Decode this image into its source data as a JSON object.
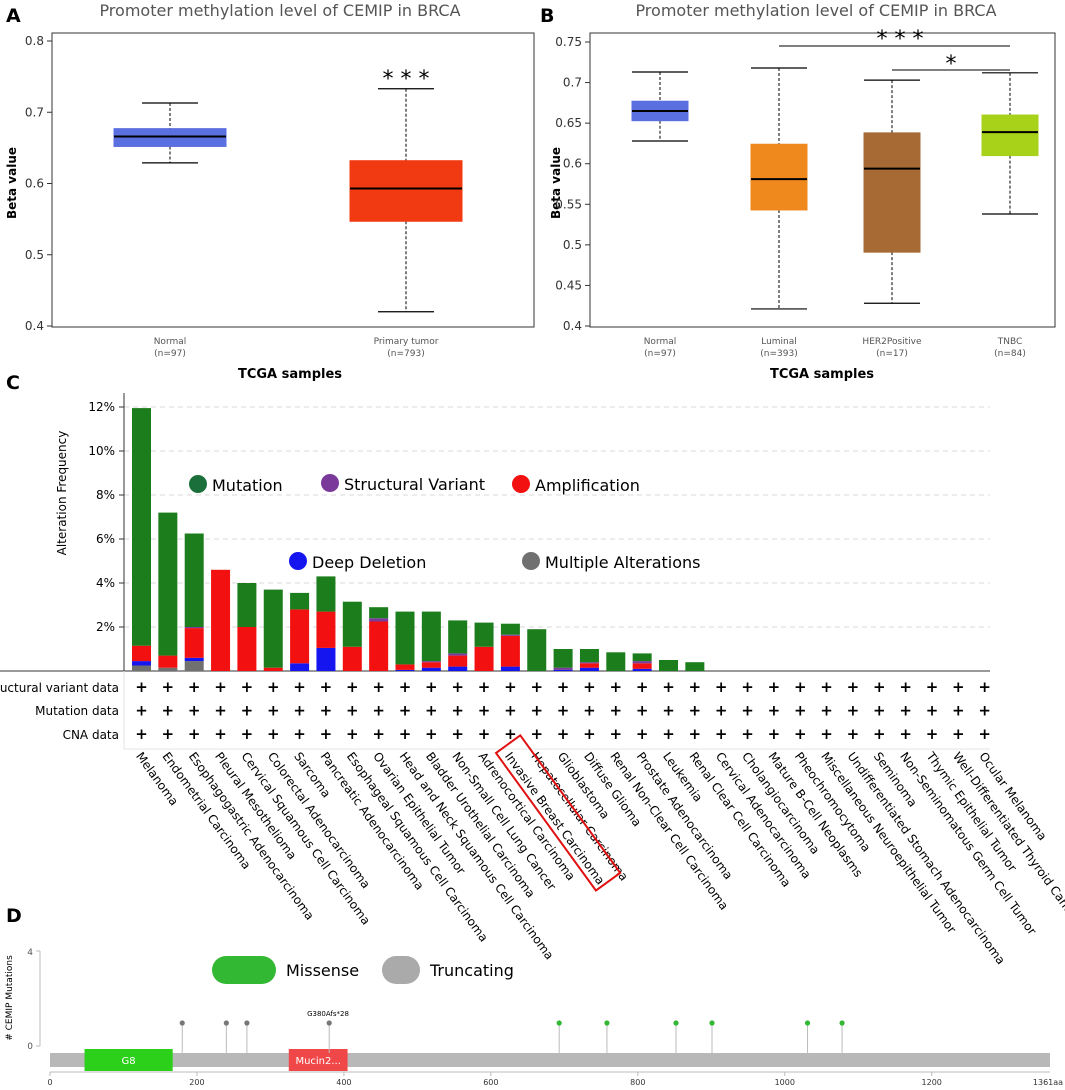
{
  "colors": {
    "normal": "#5a6fe0",
    "tumor": "#f23a12",
    "luminal": "#f0891d",
    "her2": "#a86a34",
    "tnbc": "#a8d11a",
    "mutation": "#1b7d1b",
    "structural": "#7a3a9a",
    "amplification": "#f21010",
    "deep_deletion": "#1515f0",
    "multiple": "#707070",
    "missense": "#33b833",
    "truncating": "#aaaaaa",
    "domain_g8": "#2ccf1a",
    "domain_mucin": "#f04848",
    "highlight": "#e01010"
  },
  "panel_a": {
    "letter": "A",
    "chart_data": {
      "type": "boxplot",
      "title": "Promoter methylation level of CEMIP in BRCA",
      "ylabel": "Beta value",
      "xlabel": "TCGA samples",
      "ylim": [
        0.4,
        0.8
      ],
      "yticks": [
        "0.4",
        "0.5",
        "0.6",
        "0.7",
        "0.8"
      ],
      "groups": [
        {
          "name": "Normal",
          "n": "(n=97)",
          "min": 0.629,
          "q1": 0.652,
          "median": 0.666,
          "q3": 0.677,
          "max": 0.713
        },
        {
          "name": "Primary tumor",
          "n": "(n=793)",
          "min": 0.42,
          "q1": 0.547,
          "median": 0.593,
          "q3": 0.632,
          "max": 0.733
        }
      ],
      "significance": "* * *"
    }
  },
  "panel_b": {
    "letter": "B",
    "chart_data": {
      "type": "boxplot",
      "title": "Promoter methylation level of CEMIP in BRCA",
      "ylabel": "Beta value",
      "xlabel": "TCGA samples",
      "ylim": [
        0.4,
        0.75
      ],
      "yticks": [
        "0.4",
        "0.45",
        "0.5",
        "0.55",
        "0.6",
        "0.65",
        "0.7",
        "0.75"
      ],
      "groups": [
        {
          "name": "Normal",
          "n": "(n=97)",
          "min": 0.628,
          "q1": 0.653,
          "median": 0.665,
          "q3": 0.677,
          "max": 0.713
        },
        {
          "name": "Luminal",
          "n": "(n=393)",
          "min": 0.421,
          "q1": 0.543,
          "median": 0.581,
          "q3": 0.624,
          "max": 0.718
        },
        {
          "name": "HER2Positive",
          "n": "(n=17)",
          "min": 0.428,
          "q1": 0.491,
          "median": 0.594,
          "q3": 0.638,
          "max": 0.703
        },
        {
          "name": "TNBC",
          "n": "(n=84)",
          "min": 0.538,
          "q1": 0.61,
          "median": 0.639,
          "q3": 0.66,
          "max": 0.712
        }
      ],
      "significance": [
        "* * *",
        "*"
      ]
    }
  },
  "panel_c": {
    "letter": "C",
    "chart_data": {
      "type": "stacked-bar",
      "ylabel": "Alteration Frequency",
      "ylim": [
        0,
        12
      ],
      "yticks": [
        "2%",
        "4%",
        "6%",
        "8%",
        "10%",
        "12%"
      ],
      "legend": [
        "Mutation",
        "Structural Variant",
        "Amplification",
        "Deep Deletion",
        "Multiple Alterations"
      ],
      "row_labels": [
        "Structural variant data",
        "Mutation data",
        "CNA data"
      ],
      "cell_mark": "+",
      "highlighted": "Invasive Breast Carcinoma",
      "categories": [
        "Melanoma",
        "Endometrial Carcinoma",
        "Esophagogastric Adenocarcinoma",
        "Pleural Mesothelioma",
        "Cervical Squamous Cell Carcinoma",
        "Colorectal Adenocarcinoma",
        "Sarcoma",
        "Pancreatic Adenocarcinoma",
        "Esophageal Squamous Cell Carcinoma",
        "Ovarian Epithelial Tumor",
        "Head and Neck Squamous Cell Carcinoma",
        "Bladder Urothelial Carcinoma",
        "Non-Small Cell Lung Cancer",
        "Adrenocortical Carcinoma",
        "Invasive Breast Carcinoma",
        "Hepatocellular Carcinoma",
        "Glioblastoma",
        "Diffuse Glioma",
        "Renal Non-Clear Cell Carcinoma",
        "Prostate Adenocarcinoma",
        "Leukemia",
        "Renal Clear Cell Carcinoma",
        "Cervical Adenocarcinoma",
        "Cholangiocarcinoma",
        "Mature B-Cell Neoplasms",
        "Pheochromocytoma",
        "Miscellaneous Neuroepithelial Tumor",
        "Undifferentiated Stomach Adenocarcinoma",
        "Seminoma",
        "Non-Seminomatous Germ Cell Tumor",
        "Thymic Epithelial Tumor",
        "Well-Differentiated Thyroid Cancer",
        "Ocular Melanoma"
      ],
      "series": [
        {
          "name": "Multiple Alterations",
          "values": [
            0.25,
            0.15,
            0.45,
            0,
            0,
            0,
            0,
            0,
            0,
            0,
            0,
            0,
            0,
            0,
            0,
            0,
            0,
            0,
            0,
            0,
            0,
            0,
            0,
            0,
            0,
            0,
            0,
            0,
            0,
            0,
            0,
            0,
            0
          ]
        },
        {
          "name": "Deep Deletion",
          "values": [
            0.2,
            0,
            0.15,
            0,
            0,
            0,
            0.35,
            1.05,
            0,
            0,
            0.05,
            0.15,
            0.2,
            0,
            0.2,
            0,
            0.05,
            0.15,
            0,
            0.1,
            0,
            0,
            0,
            0,
            0,
            0,
            0,
            0,
            0,
            0,
            0,
            0,
            0
          ]
        },
        {
          "name": "Amplification",
          "values": [
            0.7,
            0.55,
            1.35,
            4.6,
            2.0,
            0.15,
            2.45,
            1.65,
            1.1,
            2.25,
            0.25,
            0.25,
            0.5,
            1.1,
            1.4,
            0,
            0,
            0.2,
            0,
            0.25,
            0,
            0,
            0,
            0,
            0,
            0,
            0,
            0,
            0,
            0,
            0,
            0,
            0
          ]
        },
        {
          "name": "Structural Variant",
          "values": [
            0,
            0,
            0.05,
            0,
            0,
            0,
            0,
            0,
            0,
            0.15,
            0,
            0.05,
            0.1,
            0,
            0.05,
            0,
            0.1,
            0.05,
            0,
            0.1,
            0,
            0,
            0,
            0,
            0,
            0,
            0,
            0,
            0,
            0,
            0,
            0,
            0
          ]
        },
        {
          "name": "Mutation",
          "values": [
            10.8,
            6.5,
            4.25,
            0,
            2.0,
            3.55,
            0.75,
            1.6,
            2.05,
            0.5,
            2.4,
            2.25,
            1.5,
            1.1,
            0.5,
            1.9,
            0.85,
            0.6,
            0.85,
            0.35,
            0.5,
            0.4,
            0,
            0,
            0,
            0,
            0,
            0,
            0,
            0,
            0,
            0,
            0
          ]
        }
      ]
    }
  },
  "panel_d": {
    "letter": "D",
    "chart_data": {
      "type": "lollipop",
      "ylabel": "# CEMIP Mutations",
      "ylim": [
        0,
        4
      ],
      "yticks": [
        "0",
        "4"
      ],
      "protein_length": 1361,
      "xticks": [
        "0",
        "200",
        "400",
        "600",
        "800",
        "1000",
        "1200"
      ],
      "x_end_label": "1361aa",
      "legend": [
        "Missense",
        "Truncating"
      ],
      "domains": [
        {
          "name": "G8",
          "start": 47,
          "end": 167
        },
        {
          "name": "Mucin2...",
          "start": 325,
          "end": 405
        }
      ],
      "mutations": [
        {
          "pos": 180,
          "count": 1,
          "type": "Truncating"
        },
        {
          "pos": 240,
          "count": 1,
          "type": "Truncating"
        },
        {
          "pos": 268,
          "count": 1,
          "type": "Truncating"
        },
        {
          "pos": 380,
          "count": 1,
          "type": "Truncating",
          "label": "G380Afs*28"
        },
        {
          "pos": 693,
          "count": 1,
          "type": "Missense"
        },
        {
          "pos": 758,
          "count": 1,
          "type": "Missense"
        },
        {
          "pos": 852,
          "count": 1,
          "type": "Missense"
        },
        {
          "pos": 901,
          "count": 1,
          "type": "Missense"
        },
        {
          "pos": 1031,
          "count": 1,
          "type": "Missense"
        },
        {
          "pos": 1078,
          "count": 1,
          "type": "Missense"
        }
      ]
    }
  }
}
